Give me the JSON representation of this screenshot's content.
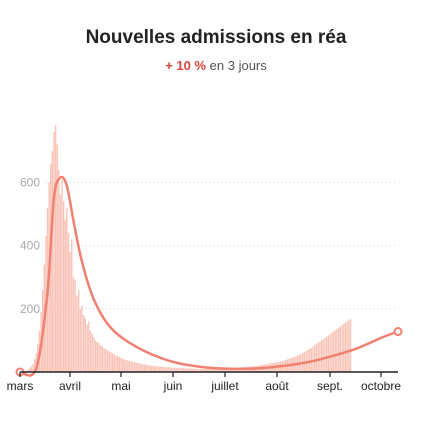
{
  "title": "Nouvelles admissions en réa",
  "subtitle": {
    "delta": "+ 10 %",
    "rest": " en 3 jours"
  },
  "colors": {
    "bars": "#f9c4b8",
    "line": "#f08070",
    "delta": "#e0413a",
    "grid": "#cccccc",
    "tick": "#aaaaaa"
  },
  "chart_data": {
    "type": "bar",
    "overlay": "line",
    "title": "Nouvelles admissions en réa",
    "ylim": [
      0,
      800
    ],
    "yticks": [
      {
        "value": 200,
        "label": "200"
      },
      {
        "value": 400,
        "label": "400"
      },
      {
        "value": 600,
        "label": "600"
      }
    ],
    "xticks": [
      {
        "month": 0,
        "label": "mars"
      },
      {
        "month": 1,
        "label": "avril"
      },
      {
        "month": 2,
        "label": "mai"
      },
      {
        "month": 3,
        "label": "juin"
      },
      {
        "month": 4,
        "label": "juillet"
      },
      {
        "month": 5,
        "label": "août"
      },
      {
        "month": 6,
        "label": "sept."
      },
      {
        "month": 7,
        "label": "octobre"
      }
    ],
    "grid": true,
    "daily_values": [
      0,
      0,
      2,
      3,
      5,
      8,
      12,
      18,
      25,
      40,
      60,
      90,
      130,
      190,
      260,
      340,
      430,
      520,
      600,
      660,
      700,
      760,
      780,
      720,
      640,
      560,
      610,
      540,
      480,
      520,
      440,
      380,
      420,
      300,
      290,
      240,
      260,
      200,
      210,
      180,
      170,
      150,
      160,
      130,
      120,
      110,
      100,
      95,
      90,
      85,
      80,
      75,
      72,
      70,
      65,
      62,
      60,
      55,
      52,
      50,
      48,
      45,
      42,
      40,
      38,
      36,
      35,
      34,
      33,
      32,
      30,
      28,
      27,
      26,
      25,
      24,
      23,
      22,
      21,
      20,
      20,
      19,
      18,
      18,
      17,
      17,
      16,
      16,
      15,
      15,
      15,
      14,
      14,
      14,
      13,
      13,
      13,
      12,
      12,
      12,
      12,
      11,
      11,
      11,
      11,
      10,
      10,
      10,
      10,
      10,
      10,
      10,
      10,
      10,
      10,
      10,
      10,
      11,
      11,
      11,
      11,
      12,
      12,
      12,
      12,
      13,
      13,
      13,
      14,
      14,
      14,
      15,
      15,
      15,
      16,
      16,
      17,
      17,
      18,
      18,
      19,
      20,
      20,
      21,
      22,
      23,
      24,
      25,
      26,
      27,
      28,
      29,
      30,
      31,
      32,
      33,
      35,
      36,
      38,
      40,
      42,
      44,
      46,
      48,
      50,
      52,
      55,
      58,
      60,
      63,
      66,
      70,
      73,
      76,
      80,
      84,
      88,
      92,
      96,
      100,
      104,
      108,
      112,
      116,
      120,
      124,
      128,
      132,
      136,
      140,
      144,
      148,
      152,
      156,
      160,
      164,
      168
    ],
    "smoothed_line": [
      {
        "day": 0,
        "value": 0
      },
      {
        "day": 10,
        "value": 10
      },
      {
        "day": 17,
        "value": 250
      },
      {
        "day": 21,
        "value": 550
      },
      {
        "day": 25,
        "value": 615
      },
      {
        "day": 29,
        "value": 590
      },
      {
        "day": 33,
        "value": 480
      },
      {
        "day": 38,
        "value": 350
      },
      {
        "day": 45,
        "value": 230
      },
      {
        "day": 55,
        "value": 140
      },
      {
        "day": 70,
        "value": 80
      },
      {
        "day": 90,
        "value": 35
      },
      {
        "day": 110,
        "value": 15
      },
      {
        "day": 130,
        "value": 10
      },
      {
        "day": 150,
        "value": 15
      },
      {
        "day": 170,
        "value": 30
      },
      {
        "day": 185,
        "value": 50
      },
      {
        "day": 200,
        "value": 75
      },
      {
        "day": 215,
        "value": 110
      },
      {
        "day": 224,
        "value": 128
      }
    ],
    "endpoints": [
      {
        "day": 0,
        "value": 0
      },
      {
        "day": 224,
        "value": 128
      }
    ]
  }
}
